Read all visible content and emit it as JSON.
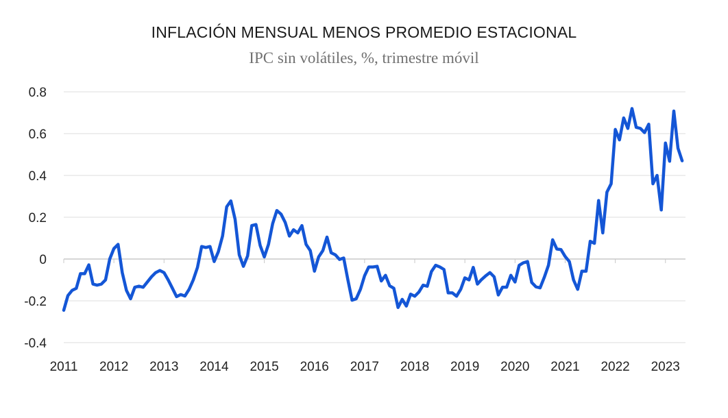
{
  "chart_data": {
    "type": "line",
    "title": "INFLACIÓN MENSUAL MENOS PROMEDIO ESTACIONAL",
    "subtitle": "IPC sin volátiles, %, trimestre móvil",
    "xlabel": "",
    "ylabel": "",
    "xlim": [
      2011.0,
      2023.4
    ],
    "ylim": [
      -0.4,
      0.8
    ],
    "y_ticks": [
      0.8,
      0.6,
      0.4,
      0.2,
      0,
      -0.2,
      -0.4
    ],
    "y_tick_labels": [
      "0.8",
      "0.6",
      "0.4",
      "0.2",
      "0",
      "-0.2",
      "-0.4"
    ],
    "x_ticks": [
      2011,
      2012,
      2013,
      2014,
      2015,
      2016,
      2017,
      2018,
      2019,
      2020,
      2021,
      2022,
      2023
    ],
    "x_tick_labels": [
      "2011",
      "2012",
      "2013",
      "2014",
      "2015",
      "2016",
      "2017",
      "2018",
      "2019",
      "2020",
      "2021",
      "2022",
      "2023"
    ],
    "grid": true,
    "line_color": "#1456d6",
    "series": [
      {
        "name": "IPC sin volátiles",
        "x": [
          2011.0,
          2011.083,
          2011.167,
          2011.25,
          2011.333,
          2011.417,
          2011.5,
          2011.583,
          2011.667,
          2011.75,
          2011.833,
          2011.917,
          2012.0,
          2012.083,
          2012.167,
          2012.25,
          2012.333,
          2012.417,
          2012.5,
          2012.583,
          2012.667,
          2012.75,
          2012.833,
          2012.917,
          2013.0,
          2013.083,
          2013.167,
          2013.25,
          2013.333,
          2013.417,
          2013.5,
          2013.583,
          2013.667,
          2013.75,
          2013.833,
          2013.917,
          2014.0,
          2014.083,
          2014.167,
          2014.25,
          2014.333,
          2014.417,
          2014.5,
          2014.583,
          2014.667,
          2014.75,
          2014.833,
          2014.917,
          2015.0,
          2015.083,
          2015.167,
          2015.25,
          2015.333,
          2015.417,
          2015.5,
          2015.583,
          2015.667,
          2015.75,
          2015.833,
          2015.917,
          2016.0,
          2016.083,
          2016.167,
          2016.25,
          2016.333,
          2016.417,
          2016.5,
          2016.583,
          2016.667,
          2016.75,
          2016.833,
          2016.917,
          2017.0,
          2017.083,
          2017.167,
          2017.25,
          2017.333,
          2017.417,
          2017.5,
          2017.583,
          2017.667,
          2017.75,
          2017.833,
          2017.917,
          2018.0,
          2018.083,
          2018.167,
          2018.25,
          2018.333,
          2018.417,
          2018.5,
          2018.583,
          2018.667,
          2018.75,
          2018.833,
          2018.917,
          2019.0,
          2019.083,
          2019.167,
          2019.25,
          2019.333,
          2019.417,
          2019.5,
          2019.583,
          2019.667,
          2019.75,
          2019.833,
          2019.917,
          2020.0,
          2020.083,
          2020.167,
          2020.25,
          2020.333,
          2020.417,
          2020.5,
          2020.583,
          2020.667,
          2020.75,
          2020.833,
          2020.917,
          2021.0,
          2021.083,
          2021.167,
          2021.25,
          2021.333,
          2021.417,
          2021.5,
          2021.583,
          2021.667,
          2021.75,
          2021.833,
          2021.917,
          2022.0,
          2022.083,
          2022.167,
          2022.25,
          2022.333,
          2022.417,
          2022.5,
          2022.583,
          2022.667,
          2022.75,
          2022.833,
          2022.917,
          2023.0,
          2023.083,
          2023.167,
          2023.25,
          2023.333
        ],
        "values": [
          -0.245,
          -0.175,
          -0.15,
          -0.14,
          -0.07,
          -0.07,
          -0.028,
          -0.12,
          -0.125,
          -0.12,
          -0.1,
          0.0,
          0.05,
          0.07,
          -0.065,
          -0.15,
          -0.19,
          -0.135,
          -0.13,
          -0.135,
          -0.11,
          -0.085,
          -0.065,
          -0.055,
          -0.065,
          -0.1,
          -0.14,
          -0.18,
          -0.17,
          -0.177,
          -0.145,
          -0.1,
          -0.04,
          0.06,
          0.055,
          0.06,
          -0.012,
          0.035,
          0.11,
          0.25,
          0.278,
          0.19,
          0.02,
          -0.035,
          0.015,
          0.16,
          0.165,
          0.065,
          0.01,
          0.07,
          0.17,
          0.232,
          0.215,
          0.175,
          0.11,
          0.14,
          0.125,
          0.16,
          0.07,
          0.04,
          -0.058,
          0.01,
          0.04,
          0.105,
          0.03,
          0.02,
          -0.002,
          0.005,
          -0.1,
          -0.197,
          -0.19,
          -0.145,
          -0.08,
          -0.038,
          -0.038,
          -0.035,
          -0.105,
          -0.078,
          -0.128,
          -0.14,
          -0.232,
          -0.193,
          -0.225,
          -0.168,
          -0.178,
          -0.158,
          -0.125,
          -0.13,
          -0.06,
          -0.03,
          -0.038,
          -0.05,
          -0.162,
          -0.162,
          -0.178,
          -0.145,
          -0.09,
          -0.1,
          -0.04,
          -0.12,
          -0.098,
          -0.08,
          -0.065,
          -0.085,
          -0.172,
          -0.135,
          -0.135,
          -0.078,
          -0.11,
          -0.03,
          -0.018,
          -0.012,
          -0.112,
          -0.133,
          -0.138,
          -0.088,
          -0.03,
          0.092,
          0.048,
          0.045,
          0.012,
          -0.012,
          -0.1,
          -0.145,
          -0.058,
          -0.058,
          0.085,
          0.075,
          0.28,
          0.125,
          0.32,
          0.36,
          0.62,
          0.57,
          0.675,
          0.625,
          0.72,
          0.63,
          0.625,
          0.605,
          0.645,
          0.36,
          0.4,
          0.235,
          0.555,
          0.468,
          0.708,
          0.53,
          0.47
        ]
      }
    ]
  }
}
